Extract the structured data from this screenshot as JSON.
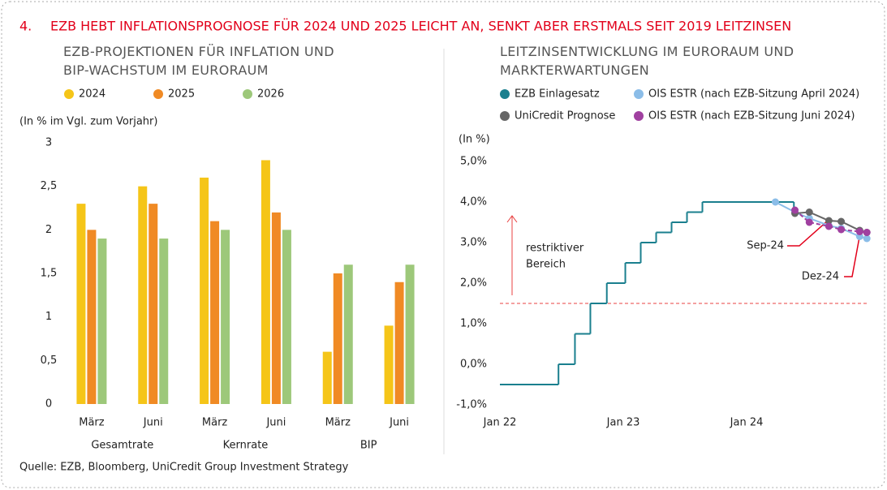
{
  "header": {
    "number": "4.",
    "title": "EZB HEBT INFLATIONSPROGNOSE FÜR 2024 UND 2025 LEICHT AN, SENKT ABER ERSTMALS SEIT 2019 LEITZINSEN"
  },
  "source": "Quelle: EZB, Bloomberg, UniCredit Group Investment Strategy",
  "chart_data": [
    {
      "type": "bar",
      "title": "EZB-PROJEKTIONEN FÜR INFLATION UND BIP-WACHSTUM IM EURORAUM",
      "y_label": "(In % im Vgl. zum Vorjahr)",
      "categories": [
        "März",
        "Juni",
        "März",
        "Juni",
        "März",
        "Juni"
      ],
      "group_labels": [
        "Gesamtrate",
        "Kernrate",
        "BIP"
      ],
      "series": [
        {
          "name": "2024",
          "color": "#f5c518",
          "values": [
            2.3,
            2.5,
            2.6,
            2.8,
            0.6,
            0.9
          ]
        },
        {
          "name": "2025",
          "color": "#f08a24",
          "values": [
            2.0,
            2.3,
            2.1,
            2.2,
            1.5,
            1.4
          ]
        },
        {
          "name": "2026",
          "color": "#9dc87a",
          "values": [
            1.9,
            1.9,
            2.0,
            2.0,
            1.6,
            1.6
          ]
        }
      ],
      "ylim": [
        0,
        3
      ],
      "yticks": [
        0,
        {
          "value": 0.5,
          "label": "0,5"
        },
        1,
        {
          "value": 1.5,
          "label": "1,5"
        },
        2,
        {
          "value": 2.5,
          "label": "2,5"
        },
        3
      ]
    },
    {
      "type": "line",
      "title": "LEITZINSENTWICKLUNG IM EURORAUM UND MARKTERWARTUNGEN",
      "y_label": "(In %)",
      "series": [
        {
          "name": "EZB Einlagesatz",
          "color": "#1a7f8e",
          "step": true,
          "x": [
            0,
            5.7,
            7.3,
            8.8,
            10.4,
            12.2,
            13.7,
            15.2,
            16.7,
            18.2,
            19.7,
            28.6
          ],
          "values": [
            -0.5,
            0,
            0.75,
            1.5,
            2.0,
            2.5,
            3.0,
            3.25,
            3.5,
            3.75,
            4.0,
            3.75
          ]
        },
        {
          "name": "OIS ESTR (nach EZB-Sitzung April 2024)",
          "color": "#8bbde8",
          "markers": true,
          "x": [
            26.8,
            28.7,
            30.1,
            32,
            33.2,
            35,
            35.7
          ],
          "values": [
            4.0,
            3.75,
            3.6,
            3.42,
            3.35,
            3.15,
            3.1
          ]
        },
        {
          "name": "UniCredit Prognose",
          "color": "#666666",
          "markers": true,
          "x": [
            28.7,
            30.1,
            32,
            33.2,
            35,
            35.7
          ],
          "values": [
            3.72,
            3.75,
            3.54,
            3.52,
            3.3,
            3.25
          ]
        },
        {
          "name": "OIS ESTR (nach EZB-Sitzung Juni 2024)",
          "color": "#a040a0",
          "markers": true,
          "dashed": true,
          "x": [
            28.7,
            30.1,
            32,
            33.2,
            35,
            35.7
          ],
          "values": [
            3.8,
            3.5,
            3.4,
            3.32,
            3.27,
            3.25
          ]
        }
      ],
      "threshold": 1.5,
      "annotations": [
        {
          "lines": [
            "restriktiver",
            "Bereich"
          ]
        },
        {
          "text": "Sep-24"
        },
        {
          "text": "Dez-24"
        }
      ],
      "xlim": [
        0,
        36
      ],
      "xticks": [
        {
          "value": 0,
          "label": "Jan 22"
        },
        {
          "value": 12,
          "label": "Jan 23"
        },
        {
          "value": 24,
          "label": "Jan 24"
        }
      ],
      "ylim": [
        -1,
        5
      ],
      "yticks": [
        {
          "value": -1,
          "label": "-1,0%"
        },
        {
          "value": 0,
          "label": "0,0%"
        },
        {
          "value": 1,
          "label": "1,0%"
        },
        {
          "value": 2,
          "label": "2,0%"
        },
        {
          "value": 3,
          "label": "3,0%"
        },
        {
          "value": 4,
          "label": "4,0%"
        },
        {
          "value": 5,
          "label": "5,0%"
        }
      ]
    }
  ]
}
